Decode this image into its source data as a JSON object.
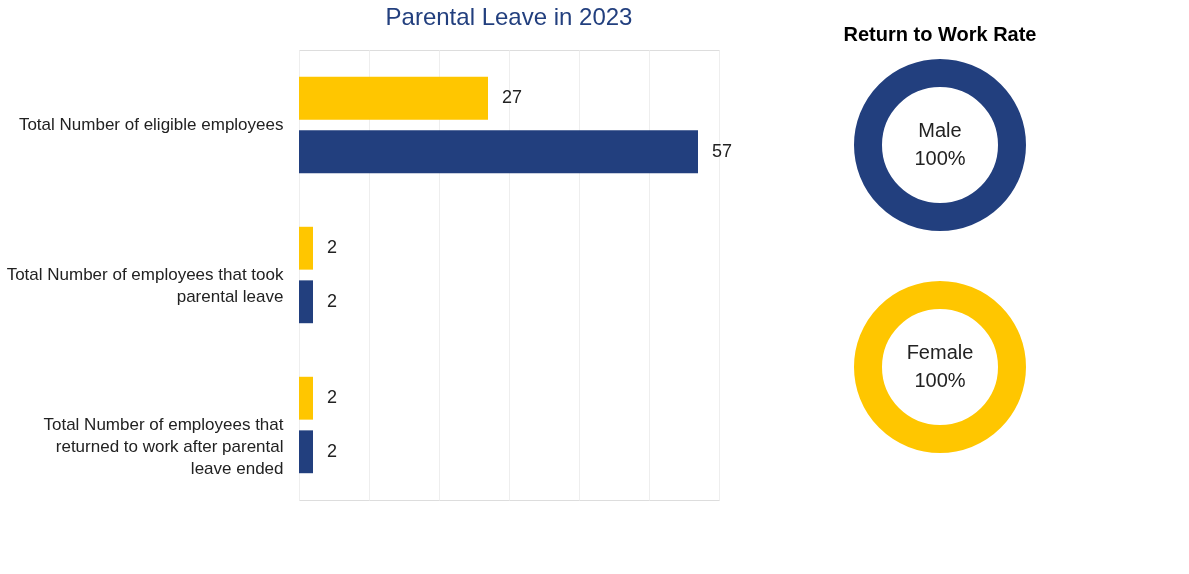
{
  "chart_data": [
    {
      "type": "bar",
      "orientation": "horizontal",
      "title": "Parental Leave in 2023",
      "categories": [
        "Total Number of eligible employees",
        "Total Number of employees that took parental leave",
        "Total Number of employees that returned to work after parental leave ended"
      ],
      "series": [
        {
          "color": "#ffc600",
          "values": [
            27,
            2,
            2
          ]
        },
        {
          "color": "#223f7e",
          "values": [
            57,
            2,
            2
          ]
        }
      ],
      "xlim": [
        0,
        60
      ],
      "xticks": [
        {
          "value": 0,
          "label": null
        },
        {
          "value": 10,
          "label": null
        },
        {
          "value": 20,
          "label": null
        },
        {
          "value": 30,
          "label": null
        },
        {
          "value": 40,
          "label": null
        },
        {
          "value": 50,
          "label": null
        },
        {
          "value": 60,
          "label": null
        }
      ],
      "grid": "x",
      "tick_labels": "y",
      "data_labels": true,
      "legend": false
    },
    {
      "type": "donut",
      "title": "Return to Work Rate",
      "categories": [
        "Male"
      ],
      "values": [
        100
      ],
      "colors": [
        "#223f7e"
      ],
      "value_labels": [
        "100%"
      ],
      "legend": false
    },
    {
      "type": "donut",
      "categories": [
        "Female"
      ],
      "values": [
        100
      ],
      "colors": [
        "#ffc600"
      ],
      "value_labels": [
        "100%"
      ],
      "legend": false
    }
  ]
}
